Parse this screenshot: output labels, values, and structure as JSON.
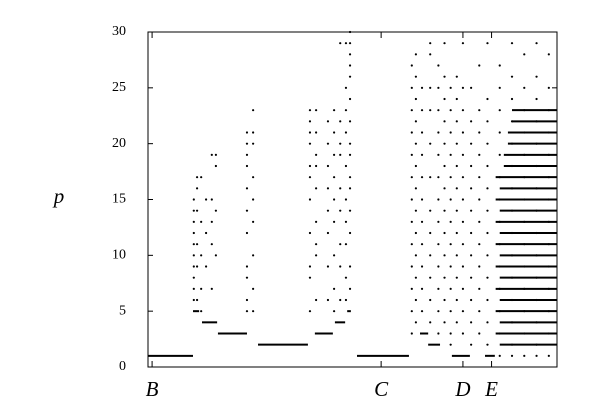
{
  "chart_data": {
    "type": "scatter",
    "y_label": "p",
    "xlim": [
      0,
      100
    ],
    "ylim": [
      0,
      30
    ],
    "yticks": [
      0,
      5,
      10,
      15,
      20,
      25,
      30
    ],
    "xticks": [
      {
        "value": 1,
        "label": "B"
      },
      {
        "value": 57,
        "label": "C"
      },
      {
        "value": 77,
        "label": "D"
      },
      {
        "value": 84,
        "label": "E"
      }
    ],
    "color": "#000000",
    "segments": [
      {
        "x": [
          0,
          11
        ],
        "y": 1
      },
      {
        "x": [
          11,
          12.5
        ],
        "y": 5
      },
      {
        "x": [
          13.2,
          16.9
        ],
        "y": 4
      },
      {
        "x": [
          17.1,
          24.2
        ],
        "y": 3
      },
      {
        "x": [
          26.9,
          39.1
        ],
        "y": 2
      },
      {
        "x": [
          40.8,
          45.2
        ],
        "y": 3
      },
      {
        "x": [
          45.7,
          48.2
        ],
        "y": 4
      },
      {
        "x": [
          48.7,
          49.6
        ],
        "y": 5
      },
      {
        "x": [
          51.1,
          63.8
        ],
        "y": 1
      },
      {
        "x": [
          66.5,
          68.5
        ],
        "y": 3
      },
      {
        "x": [
          68.5,
          71.4
        ],
        "y": 2
      },
      {
        "x": [
          74.3,
          78.7
        ],
        "y": 1
      },
      {
        "x": [
          82.4,
          84.8
        ],
        "y": 1
      },
      {
        "x": [
          86,
          100
        ],
        "y": 2
      },
      {
        "x": [
          85,
          100
        ],
        "y": 3
      },
      {
        "x": [
          86,
          100
        ],
        "y": 4
      },
      {
        "x": [
          85,
          100
        ],
        "y": 5
      },
      {
        "x": [
          86,
          100
        ],
        "y": 6
      },
      {
        "x": [
          85,
          100
        ],
        "y": 7
      },
      {
        "x": [
          86,
          100
        ],
        "y": 8
      },
      {
        "x": [
          85,
          100
        ],
        "y": 9
      },
      {
        "x": [
          86,
          100
        ],
        "y": 10
      },
      {
        "x": [
          85,
          100
        ],
        "y": 11
      },
      {
        "x": [
          86,
          100
        ],
        "y": 12
      },
      {
        "x": [
          85,
          100
        ],
        "y": 13
      },
      {
        "x": [
          86,
          100
        ],
        "y": 14
      },
      {
        "x": [
          85,
          100
        ],
        "y": 15
      },
      {
        "x": [
          86,
          100
        ],
        "y": 16
      },
      {
        "x": [
          85,
          100
        ],
        "y": 17
      },
      {
        "x": [
          87,
          100
        ],
        "y": 18
      },
      {
        "x": [
          87,
          100
        ],
        "y": 19
      },
      {
        "x": [
          88,
          100
        ],
        "y": 20
      },
      {
        "x": [
          88,
          100
        ],
        "y": 21
      },
      {
        "x": [
          89,
          100
        ],
        "y": 22
      },
      {
        "x": [
          89,
          100
        ],
        "y": 23
      }
    ],
    "columns": [
      {
        "x": 11.2,
        "y": [
          6,
          7,
          8,
          9,
          10,
          11,
          12,
          13,
          14,
          15
        ]
      },
      {
        "x": 12.0,
        "y": [
          6,
          9,
          11,
          14,
          16,
          17
        ]
      },
      {
        "x": 13.0,
        "y": [
          5,
          7,
          10,
          13,
          17
        ]
      },
      {
        "x": 14.2,
        "y": [
          9,
          12,
          15
        ]
      },
      {
        "x": 15.6,
        "y": [
          7,
          11,
          13,
          15,
          19
        ]
      },
      {
        "x": 16.6,
        "y": [
          10,
          14,
          18,
          19
        ]
      },
      {
        "x": 24.2,
        "y": [
          5,
          6,
          8,
          9,
          12,
          14,
          16,
          18,
          19,
          20,
          21
        ]
      },
      {
        "x": 25.7,
        "y": [
          5,
          7,
          10,
          13,
          15,
          17,
          20,
          21,
          23
        ]
      },
      {
        "x": 39.6,
        "y": [
          5,
          8,
          9,
          12,
          15,
          17,
          18,
          20,
          21,
          22,
          23
        ]
      },
      {
        "x": 41.1,
        "y": [
          6,
          10,
          11,
          13,
          16,
          18,
          19,
          21,
          23
        ]
      },
      {
        "x": 44.0,
        "y": [
          6,
          9,
          12,
          14,
          16,
          18,
          20,
          22
        ]
      },
      {
        "x": 45.5,
        "y": [
          5,
          7,
          10,
          13,
          15,
          17,
          19,
          21,
          23
        ]
      },
      {
        "x": 47.0,
        "y": [
          6,
          9,
          11,
          14,
          16,
          19,
          20,
          22,
          29
        ]
      },
      {
        "x": 48.4,
        "y": [
          6,
          8,
          11,
          13,
          15,
          18,
          21,
          23,
          25,
          29
        ]
      },
      {
        "x": 49.4,
        "y": [
          7,
          9,
          12,
          14,
          16,
          17,
          19,
          20,
          22,
          24,
          26,
          27,
          28,
          29,
          30
        ]
      },
      {
        "x": 64.5,
        "y": [
          3,
          5,
          7,
          9,
          11,
          13,
          15,
          17,
          19,
          21,
          23,
          25,
          27
        ]
      },
      {
        "x": 65.5,
        "y": [
          4,
          6,
          8,
          10,
          12,
          14,
          16,
          18,
          20,
          22,
          24,
          26,
          28
        ]
      },
      {
        "x": 67,
        "y": [
          5,
          7,
          9,
          11,
          13,
          15,
          17,
          19,
          21,
          23,
          25
        ]
      },
      {
        "x": 69,
        "y": [
          4,
          6,
          8,
          10,
          12,
          14,
          17,
          20,
          23,
          25,
          28,
          29
        ]
      },
      {
        "x": 71,
        "y": [
          3,
          5,
          7,
          9,
          11,
          13,
          15,
          17,
          19,
          21,
          23,
          25,
          27
        ]
      },
      {
        "x": 72.5,
        "y": [
          4,
          6,
          8,
          10,
          12,
          14,
          16,
          18,
          20,
          22,
          24,
          26,
          29
        ]
      },
      {
        "x": 74,
        "y": [
          2,
          3,
          5,
          7,
          9,
          11,
          13,
          15,
          17,
          19,
          21,
          23,
          25
        ]
      },
      {
        "x": 75.5,
        "y": [
          4,
          6,
          8,
          10,
          12,
          14,
          16,
          18,
          20,
          22,
          24,
          26
        ]
      },
      {
        "x": 77,
        "y": [
          3,
          5,
          7,
          9,
          11,
          13,
          15,
          17,
          19,
          21,
          23,
          25,
          29
        ]
      },
      {
        "x": 79,
        "y": [
          2,
          4,
          6,
          8,
          10,
          12,
          14,
          16,
          18,
          20,
          22,
          25
        ]
      },
      {
        "x": 81,
        "y": [
          3,
          5,
          7,
          9,
          11,
          13,
          15,
          17,
          19,
          21,
          23,
          27
        ]
      },
      {
        "x": 83,
        "y": [
          2,
          4,
          6,
          8,
          10,
          12,
          14,
          16,
          18,
          20,
          22,
          24,
          29
        ]
      },
      {
        "x": 86,
        "y": [
          1,
          3,
          5,
          7,
          9,
          11,
          13,
          15,
          17,
          19,
          21,
          23,
          25,
          27
        ]
      },
      {
        "x": 89,
        "y": [
          1,
          2,
          4,
          6,
          8,
          10,
          12,
          14,
          16,
          18,
          20,
          22,
          24,
          26,
          29
        ]
      },
      {
        "x": 92,
        "y": [
          1,
          3,
          5,
          7,
          9,
          11,
          13,
          15,
          17,
          19,
          21,
          23,
          25,
          28
        ]
      },
      {
        "x": 95,
        "y": [
          1,
          2,
          4,
          6,
          8,
          10,
          12,
          14,
          16,
          18,
          20,
          22,
          24,
          26,
          29
        ]
      },
      {
        "x": 98,
        "y": [
          1,
          3,
          5,
          7,
          9,
          11,
          13,
          15,
          17,
          19,
          21,
          23,
          25,
          28
        ]
      }
    ]
  }
}
